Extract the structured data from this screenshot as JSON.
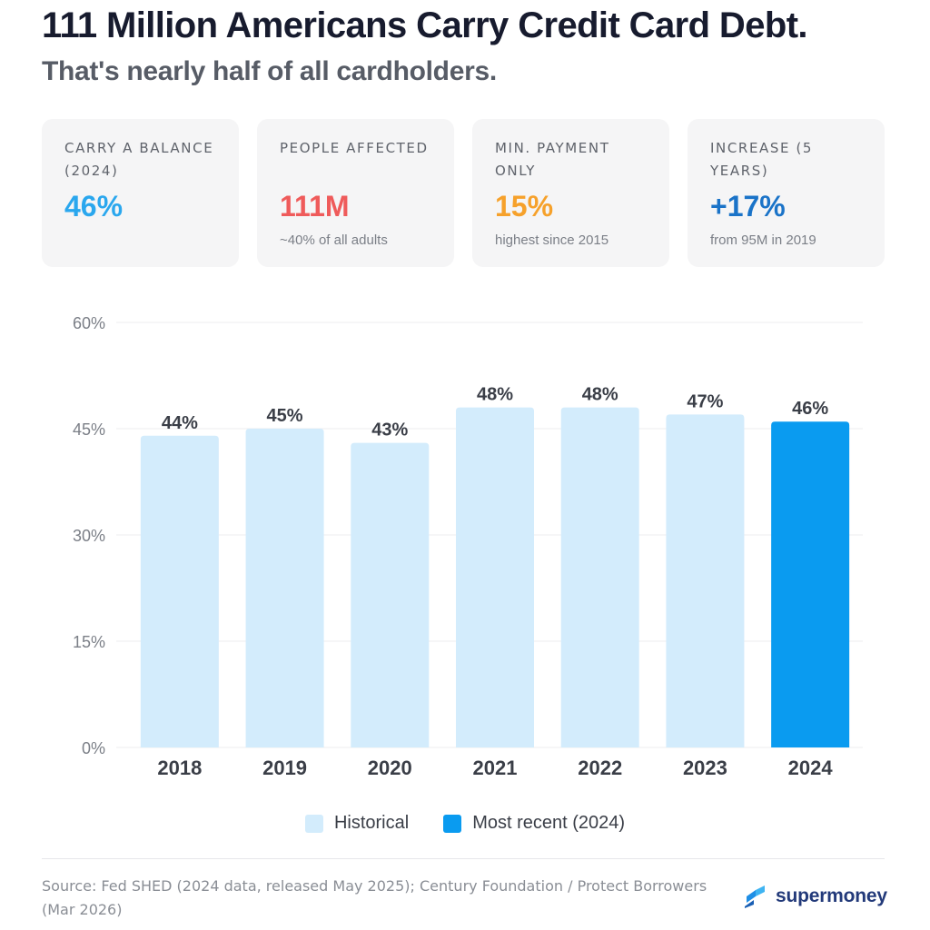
{
  "header": {
    "title": "111 Million Americans Carry Credit Card Debt.",
    "subtitle": "That's nearly half of all cardholders."
  },
  "stats": [
    {
      "label": "CARRY A BALANCE (2024)",
      "value": "46%",
      "note": "",
      "color": "#2aa7ee"
    },
    {
      "label": "PEOPLE AFFECTED",
      "value": "111M",
      "note": "~40% of all adults",
      "color": "#ef5b5b"
    },
    {
      "label": "MIN. PAYMENT ONLY",
      "value": "15%",
      "note": "highest since 2015",
      "color": "#f6a12b"
    },
    {
      "label": "INCREASE (5 YEARS)",
      "value": "+17%",
      "note": "from 95M in 2019",
      "color": "#1a73c8"
    }
  ],
  "chart_data": {
    "type": "bar",
    "categories": [
      "2018",
      "2019",
      "2020",
      "2021",
      "2022",
      "2023",
      "2024"
    ],
    "values": [
      44,
      45,
      43,
      48,
      48,
      47,
      46
    ],
    "value_labels": [
      "44%",
      "45%",
      "43%",
      "48%",
      "48%",
      "47%",
      "46%"
    ],
    "ylim": [
      0,
      60
    ],
    "yticks": [
      0,
      15,
      30,
      45,
      60
    ],
    "ytick_labels": [
      "0%",
      "15%",
      "30%",
      "45%",
      "60%"
    ],
    "grid": true,
    "highlight_index": 6,
    "colors": {
      "historical": "#d3ecfc",
      "recent": "#0a9bf0"
    },
    "legend": [
      "Historical",
      "Most recent (2024)"
    ],
    "legend_position": "bottom-center"
  },
  "footer": {
    "source": "Source: Fed SHED (2024 data, released May 2025); Century Foundation / Protect Borrowers (Mar 2026)",
    "brand": "supermoney",
    "brand_icon": "supermoney-logo-icon"
  }
}
